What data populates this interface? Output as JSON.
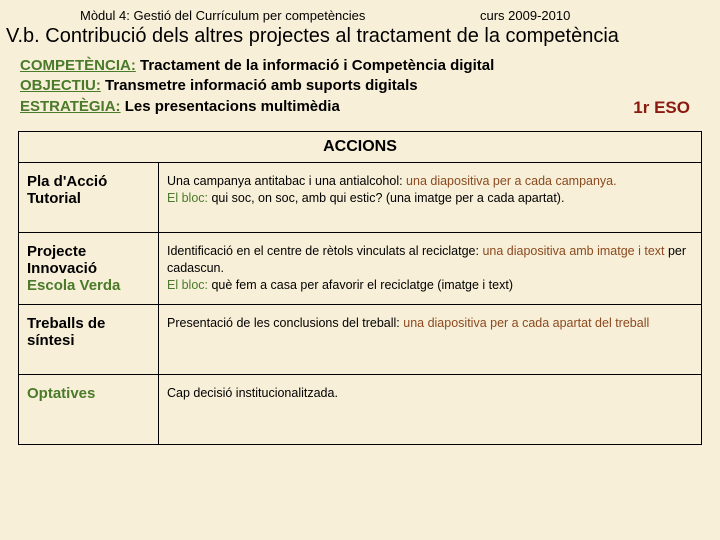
{
  "colors": {
    "background": "#f8efd8",
    "text": "#000000",
    "green": "#4a7a2a",
    "brown": "#8a4a20",
    "darkred": "#8a1a10",
    "border": "#000000"
  },
  "fonts": {
    "header_family": "Comic Sans MS",
    "body_family": "Arial",
    "title_size": 20,
    "meta_size": 15,
    "th_size": 16,
    "label_size": 15,
    "content_size": 12.5
  },
  "header": {
    "module": "Mòdul 4: Gestió del Currículum per competències",
    "course_year": "curs 2009-2010"
  },
  "title": "V.b. Contribució dels altres projectes al tractament de la competència",
  "meta": {
    "competencia_label": "COMPETÈNCIA:",
    "competencia_text": " Tractament de la informació i Competència digital",
    "objectiu_label": "OBJECTIU:",
    "objectiu_text": " Transmetre informació amb suports digitals",
    "estrategia_label": "ESTRATÈGIA:",
    "estrategia_text": " Les presentacions multimèdia",
    "course": "1r ESO"
  },
  "table": {
    "header": "ACCIONS",
    "rows": [
      {
        "label_parts": [
          {
            "text": "Pla d'Acció Tutorial",
            "class": ""
          }
        ],
        "content_parts": [
          {
            "text": "Una campanya antitabac i una antialcohol: ",
            "class": ""
          },
          {
            "text": "una diapositiva per a cada campanya.",
            "class": "brown"
          },
          {
            "text": "\n",
            "class": ""
          },
          {
            "text": "El bloc:",
            "class": "green"
          },
          {
            "text": " qui soc, on soc, amb qui estic? (una imatge per a cada apartat).",
            "class": ""
          }
        ]
      },
      {
        "label_parts": [
          {
            "text": "Projecte Innovació",
            "class": ""
          },
          {
            "text": "\n",
            "class": ""
          },
          {
            "text": "Escola Verda",
            "class": "green"
          }
        ],
        "content_parts": [
          {
            "text": "Identificació en el centre de rètols vinculats al reciclatge: ",
            "class": ""
          },
          {
            "text": "una diapositiva amb imatge i text",
            "class": "brown"
          },
          {
            "text": " per cadascun.\n",
            "class": ""
          },
          {
            "text": "El bloc:",
            "class": "green"
          },
          {
            "text": " què fem a casa per afavorir el reciclatge (imatge i text)",
            "class": ""
          }
        ]
      },
      {
        "label_parts": [
          {
            "text": "Treballs de síntesi",
            "class": ""
          }
        ],
        "content_parts": [
          {
            "text": "Presentació de les conclusions del treball: ",
            "class": ""
          },
          {
            "text": "una diapositiva per a cada apartat del treball",
            "class": "brown"
          }
        ]
      },
      {
        "label_parts": [
          {
            "text": "Optatives",
            "class": "green"
          }
        ],
        "content_parts": [
          {
            "text": "Cap decisió institucionalitzada.",
            "class": ""
          }
        ]
      }
    ]
  }
}
